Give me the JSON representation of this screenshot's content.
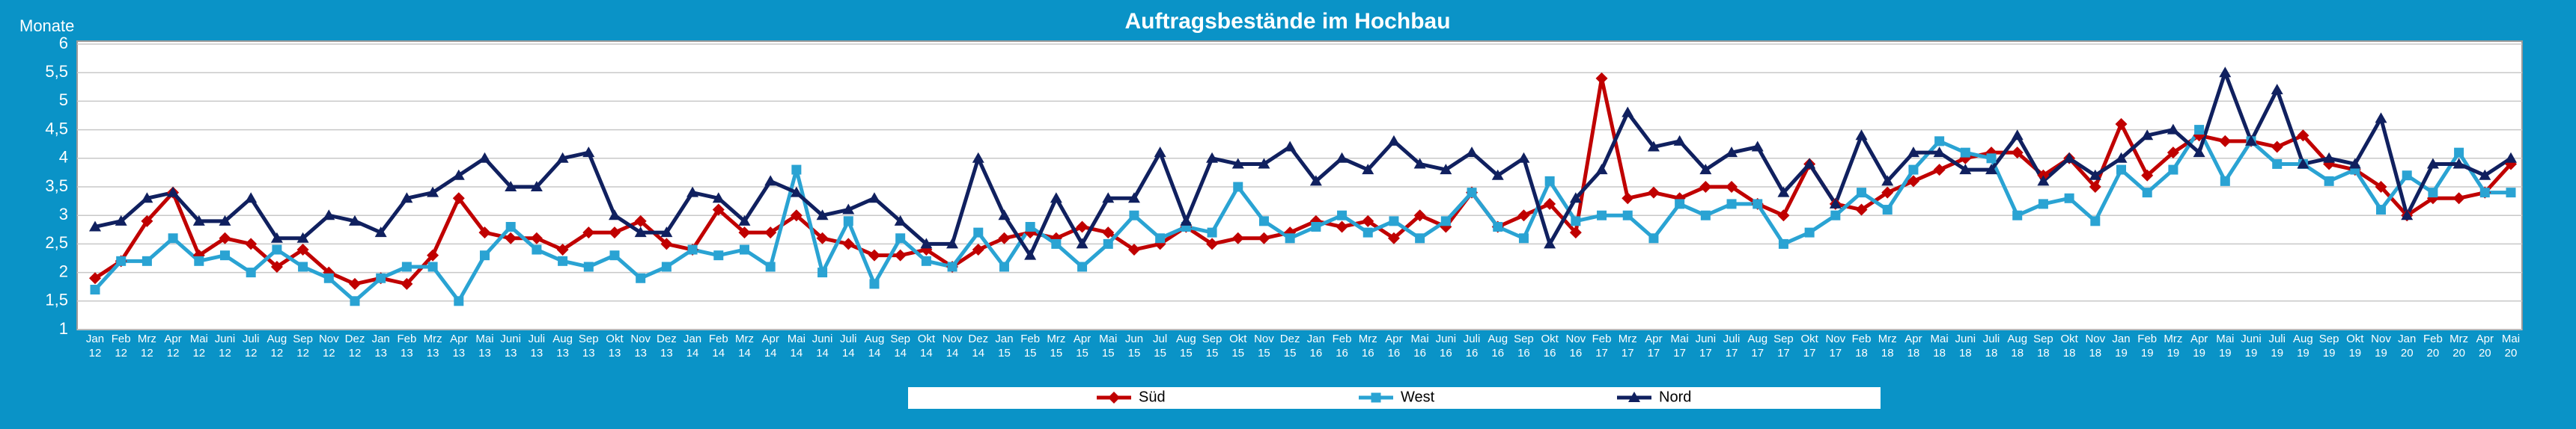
{
  "chart_data": {
    "type": "line",
    "title": "Auftragsbestände im Hochbau",
    "ylabel": "Monate",
    "categories": [
      "Jan 12",
      "Feb 12",
      "Mrz 12",
      "Apr 12",
      "Mai 12",
      "Juni 12",
      "Juli 12",
      "Aug 12",
      "Sep 12",
      "Nov 12",
      "Dez 12",
      "Jan 13",
      "Feb 13",
      "Mrz 13",
      "Apr 13",
      "Mai 13",
      "Juni 13",
      "Juli 13",
      "Aug 13",
      "Sep 13",
      "Okt 13",
      "Nov 13",
      "Dez 13",
      "Jan 14",
      "Feb 14",
      "Mrz 14",
      "Apr 14",
      "Mai 14",
      "Juni 14",
      "Juli 14",
      "Aug 14",
      "Sep 14",
      "Okt 14",
      "Nov 14",
      "Dez 14",
      "Jan 15",
      "Feb 15",
      "Mrz 15",
      "Apr 15",
      "Mai 15",
      "Jun 15",
      "Jul 15",
      "Aug 15",
      "Sep 15",
      "Okt 15",
      "Nov 15",
      "Dez 15",
      "Jan 16",
      "Feb 16",
      "Mrz 16",
      "Apr 16",
      "Mai 16",
      "Juni 16",
      "Juli 16",
      "Aug 16",
      "Sep 16",
      "Okt 16",
      "Nov 16",
      "Feb 17",
      "Mrz 17",
      "Apr 17",
      "Mai 17",
      "Juni 17",
      "Juli 17",
      "Aug 17",
      "Sep 17",
      "Okt 17",
      "Nov 17",
      "Feb 18",
      "Mrz 18",
      "Apr 18",
      "Mai 18",
      "Juni 18",
      "Juli 18",
      "Aug 18",
      "Sep 18",
      "Okt 18",
      "Nov 18",
      "Jan 19",
      "Feb 19",
      "Mrz 19",
      "Apr 19",
      "Mai 19",
      "Juni 19",
      "Juli 19",
      "Aug 19",
      "Sep 19",
      "Okt 19",
      "Nov 19",
      "Jan 20",
      "Feb 20",
      "Mrz 20",
      "Apr 20",
      "Mai 20"
    ],
    "series": [
      {
        "name": "Süd",
        "color": "#c00000",
        "marker": "diamond",
        "values": [
          1.9,
          2.2,
          2.9,
          3.4,
          2.3,
          2.6,
          2.5,
          2.1,
          2.4,
          2.0,
          1.8,
          1.9,
          1.8,
          2.3,
          3.3,
          2.7,
          2.6,
          2.6,
          2.4,
          2.7,
          2.7,
          2.9,
          2.5,
          2.4,
          3.1,
          2.7,
          2.7,
          3.0,
          2.6,
          2.5,
          2.3,
          2.3,
          2.4,
          2.1,
          2.4,
          2.6,
          2.7,
          2.6,
          2.8,
          2.7,
          2.4,
          2.5,
          2.8,
          2.5,
          2.6,
          2.6,
          2.7,
          2.9,
          2.8,
          2.9,
          2.6,
          3.0,
          2.8,
          3.4,
          2.8,
          3.0,
          3.2,
          2.7,
          5.4,
          3.3,
          3.4,
          3.3,
          3.5,
          3.5,
          3.2,
          3.0,
          3.9,
          3.2,
          3.1,
          3.4,
          3.6,
          3.8,
          4.0,
          4.1,
          4.1,
          3.7,
          4.0,
          3.5,
          4.6,
          3.7,
          4.1,
          4.4,
          4.3,
          4.3,
          4.2,
          4.4,
          3.9,
          3.8,
          3.5,
          3.0,
          3.3,
          3.3,
          3.4,
          3.9
        ]
      },
      {
        "name": "West",
        "color": "#2aa3d3",
        "marker": "square",
        "values": [
          1.7,
          2.2,
          2.2,
          2.6,
          2.2,
          2.3,
          2.0,
          2.4,
          2.1,
          1.9,
          1.5,
          1.9,
          2.1,
          2.1,
          1.5,
          2.3,
          2.8,
          2.4,
          2.2,
          2.1,
          2.3,
          1.9,
          2.1,
          2.4,
          2.3,
          2.4,
          2.1,
          3.8,
          2.0,
          2.9,
          1.8,
          2.6,
          2.2,
          2.1,
          2.7,
          2.1,
          2.8,
          2.5,
          2.1,
          2.5,
          3.0,
          2.6,
          2.8,
          2.7,
          3.5,
          2.9,
          2.6,
          2.8,
          3.0,
          2.7,
          2.9,
          2.6,
          2.9,
          3.4,
          2.8,
          2.6,
          3.6,
          2.9,
          3.0,
          3.0,
          2.6,
          3.2,
          3.0,
          3.2,
          3.2,
          2.5,
          2.7,
          3.0,
          3.4,
          3.1,
          3.8,
          4.3,
          4.1,
          4.0,
          3.0,
          3.2,
          3.3,
          2.9,
          3.8,
          3.4,
          3.8,
          4.5,
          3.6,
          4.3,
          3.9,
          3.9,
          3.6,
          3.8,
          3.1,
          3.7,
          3.4,
          4.1,
          3.4,
          3.4
        ]
      },
      {
        "name": "Nord",
        "color": "#10205f",
        "marker": "triangle",
        "values": [
          2.8,
          2.9,
          3.3,
          3.4,
          2.9,
          2.9,
          3.3,
          2.6,
          2.6,
          3.0,
          2.9,
          2.7,
          3.3,
          3.4,
          3.7,
          4.0,
          3.5,
          3.5,
          4.0,
          4.1,
          3.0,
          2.7,
          2.7,
          3.4,
          3.3,
          2.9,
          3.6,
          3.4,
          3.0,
          3.1,
          3.3,
          2.9,
          2.5,
          2.5,
          4.0,
          3.0,
          2.3,
          3.3,
          2.5,
          3.3,
          3.3,
          4.1,
          2.9,
          4.0,
          3.9,
          3.9,
          4.2,
          3.6,
          4.0,
          3.8,
          4.3,
          3.9,
          3.8,
          4.1,
          3.7,
          4.0,
          2.5,
          3.3,
          3.8,
          4.8,
          4.2,
          4.3,
          3.8,
          4.1,
          4.2,
          3.4,
          3.9,
          3.2,
          4.4,
          3.6,
          4.1,
          4.1,
          3.8,
          3.8,
          4.4,
          3.6,
          4.0,
          3.7,
          4.0,
          4.4,
          4.5,
          4.1,
          5.5,
          4.3,
          5.2,
          3.9,
          4.0,
          3.9,
          4.7,
          3.0,
          3.9,
          3.9,
          3.7,
          4.0
        ]
      }
    ],
    "ylim": [
      1,
      6
    ],
    "yticks": [
      1,
      {
        "value": 1.5,
        "label": "1,5"
      },
      2,
      {
        "value": 2.5,
        "label": "2,5"
      },
      3,
      {
        "value": 3.5,
        "label": "3,5"
      },
      4,
      {
        "value": 4.5,
        "label": "4,5"
      },
      5,
      {
        "value": 5.5,
        "label": "5,5"
      },
      6
    ],
    "grid": true,
    "legend": "bottom"
  }
}
